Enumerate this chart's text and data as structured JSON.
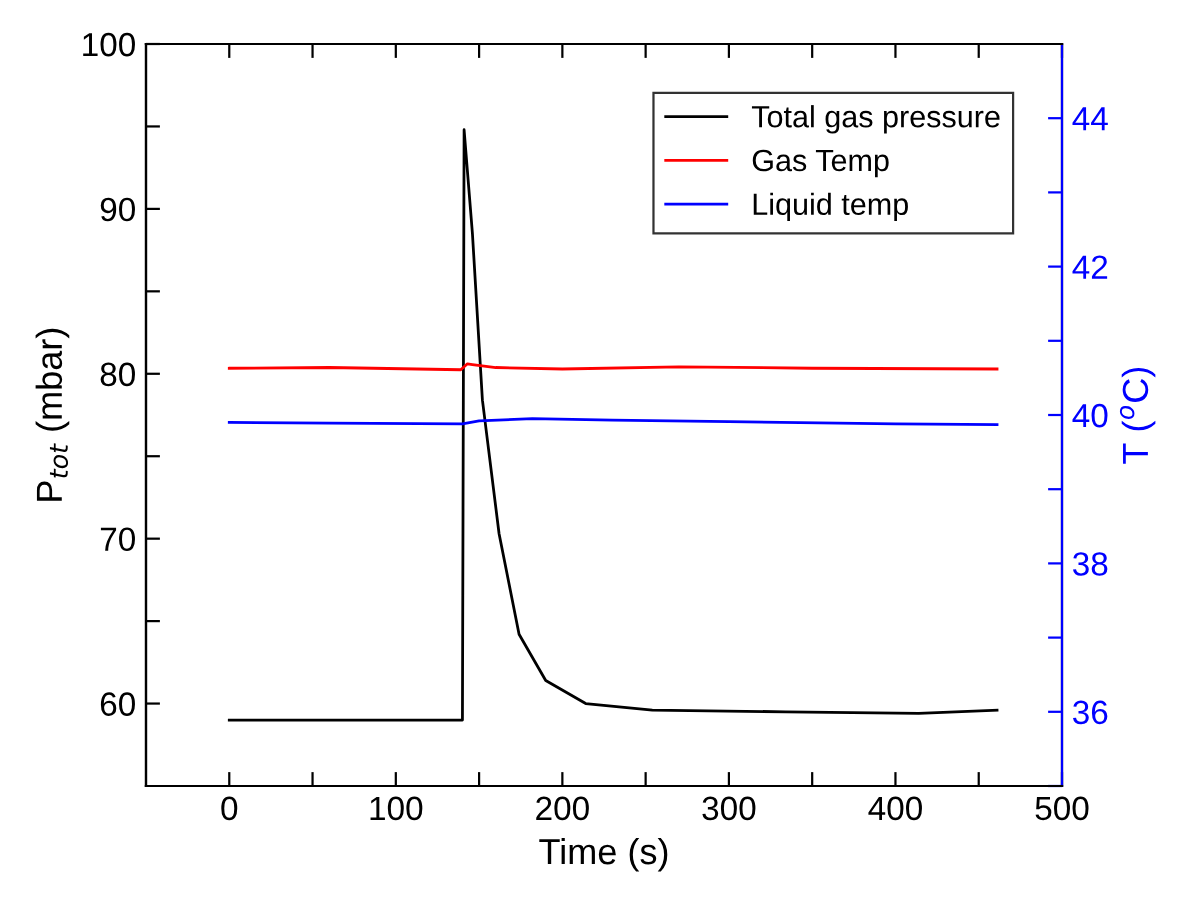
{
  "chart_data": {
    "type": "line",
    "xlabel": "Time (s)",
    "ylabel": "P$_{tot}$ (mbar)",
    "y2label": "T ($^{o}$C)",
    "xlim": [
      -50,
      500
    ],
    "xticks": [
      0,
      {
        "value": 50,
        "label": null
      },
      100,
      {
        "value": 150,
        "label": null
      },
      200,
      {
        "value": 250,
        "label": null
      },
      300,
      {
        "value": 350,
        "label": null
      },
      400,
      {
        "value": 450,
        "label": null
      },
      500
    ],
    "ylim": [
      55,
      100
    ],
    "yticks": [
      60,
      {
        "value": 65,
        "label": null
      },
      70,
      {
        "value": 75,
        "label": null
      },
      80,
      {
        "value": 85,
        "label": null
      },
      90,
      {
        "value": 95,
        "label": null
      },
      100
    ],
    "y2lim": [
      35,
      45
    ],
    "y2ticks": [
      {
        "value": 35,
        "label": null
      },
      36,
      {
        "value": 37,
        "label": null
      },
      38,
      {
        "value": 39,
        "label": null
      },
      40,
      {
        "value": 41,
        "label": null
      },
      42,
      {
        "value": 43,
        "label": null
      },
      44
    ],
    "legend": "top right",
    "grid": false,
    "line_style": "solid",
    "marker": "none",
    "series": [
      {
        "name": "Total gas pressure",
        "color": "#000000",
        "x": [
          0,
          60,
          139,
          140,
          141,
          146,
          152,
          162,
          174,
          190,
          214,
          254,
          334,
          414,
          461
        ],
        "values": [
          59.0,
          59.0,
          59.0,
          59.0,
          94.8,
          88.5,
          78.4,
          70.3,
          64.2,
          61.4,
          60.0,
          59.6,
          59.5,
          59.4,
          59.6
        ]
      },
      {
        "name": "Gas Temp",
        "color": "#ff0000",
        "axis": "y2",
        "x": [
          0,
          60,
          139,
          143,
          146,
          160,
          200,
          270,
          350,
          461
        ],
        "values": [
          40.63,
          40.64,
          40.61,
          40.69,
          40.68,
          40.64,
          40.62,
          40.65,
          40.63,
          40.62
        ]
      },
      {
        "name": "Liquid temp",
        "color": "#0000ff",
        "axis": "y2",
        "x": [
          0,
          60,
          140,
          150,
          182,
          230,
          300,
          400,
          461
        ],
        "values": [
          39.9,
          39.89,
          39.88,
          39.92,
          39.95,
          39.93,
          39.91,
          39.88,
          39.87
        ]
      }
    ]
  }
}
